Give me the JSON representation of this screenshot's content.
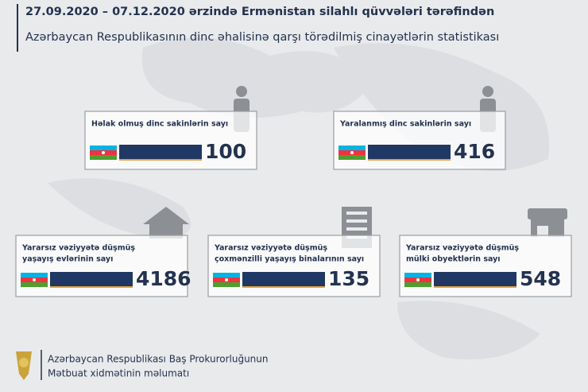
{
  "header": {
    "line1": "27.09.2020 – 07.12.2020 ərzində Ermənistan silahlı qüvvələri tərəfindən",
    "line2": "Azərbaycan Respublikasının dinc əhalisinə qarşı törədilmiş cinayətlərin statistikası"
  },
  "cards": [
    {
      "label_lines": [
        "Həlak olmuş dinc sakinlərin sayı"
      ],
      "value": 100
    },
    {
      "label_lines": [
        "Yaralanmış dinc sakinlərin sayı"
      ],
      "value": 416
    },
    {
      "label_lines": [
        "Yararsız vəziyyətə düşmüş",
        "yaşayış evlərinin sayı"
      ],
      "value": 4186
    },
    {
      "label_lines": [
        "Yararsız vəziyyətə düşmüş",
        "çoxmənzilli yaşayış binalarının sayı"
      ],
      "value": 135
    },
    {
      "label_lines": [
        "Yararsız vəziyyətə düşmüş",
        "mülki obyektlərin sayı"
      ],
      "value": 548
    }
  ],
  "footer": {
    "lines": [
      "Azərbaycan Respublikası Baş Prokurorluğunun",
      "Mətbuat xidmətinin məlumatı"
    ]
  }
}
